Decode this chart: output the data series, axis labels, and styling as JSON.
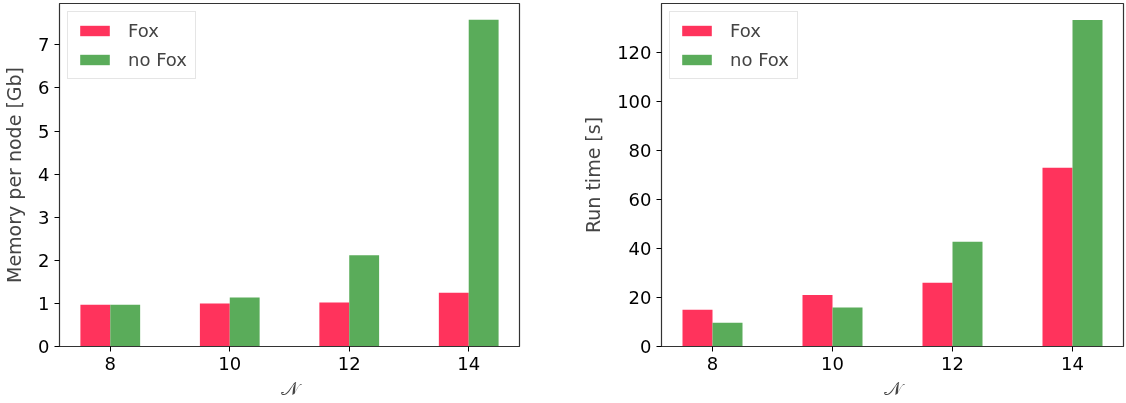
{
  "chart_data": [
    {
      "type": "bar",
      "categories": [
        "8",
        "10",
        "12",
        "14"
      ],
      "xlabel": "𝒩",
      "ylabel": "Memory per node [Gb]",
      "series": [
        {
          "name": "Fox",
          "color": "#ff335c",
          "values": [
            0.97,
            1.0,
            1.02,
            1.25
          ]
        },
        {
          "name": "no Fox",
          "color": "#5aac5a",
          "values": [
            0.97,
            1.14,
            2.12,
            7.58
          ]
        }
      ],
      "ylim": [
        0,
        7.96
      ],
      "yticks": [
        0,
        1,
        2,
        3,
        4,
        5,
        6,
        7
      ],
      "grid": false,
      "legend": "top left"
    },
    {
      "type": "bar",
      "categories": [
        "8",
        "10",
        "12",
        "14"
      ],
      "xlabel": "𝒩",
      "ylabel": "Run time [s]",
      "series": [
        {
          "name": "Fox",
          "color": "#ff335c",
          "values": [
            15,
            21,
            26,
            73
          ]
        },
        {
          "name": "no Fox",
          "color": "#5aac5a",
          "values": [
            9.7,
            15.9,
            42.8,
            133.3
          ]
        }
      ],
      "ylim": [
        0,
        140
      ],
      "yticks": [
        0,
        20,
        40,
        60,
        80,
        100,
        120
      ],
      "grid": false,
      "legend": "top left"
    }
  ]
}
